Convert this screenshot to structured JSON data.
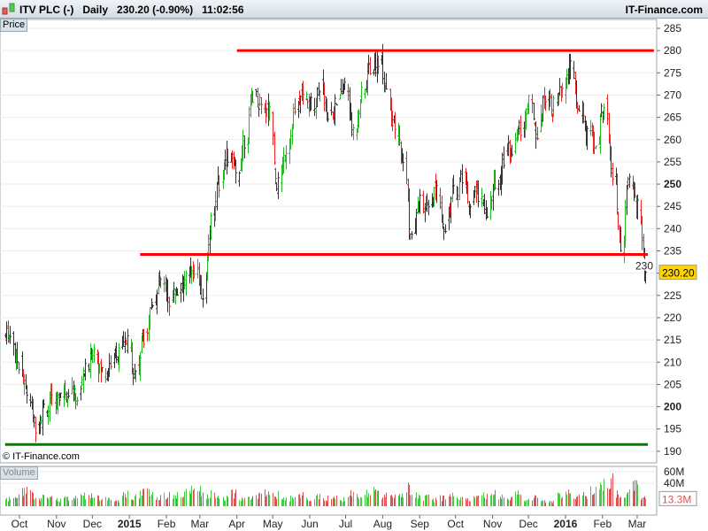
{
  "header": {
    "symbol": "ITV PLC (-)",
    "period": "Daily",
    "price": "230.20 (-0.90%)",
    "time": "11:02:56",
    "brand": "IT-Finance.com",
    "icon": "candlestick-icon"
  },
  "panels": {
    "price_label": "Price",
    "volume_label": "Volume",
    "copyright": "© IT-Finance.com"
  },
  "chart_data": {
    "type": "ohlc",
    "y_ticks": [
      190,
      195,
      200,
      205,
      210,
      215,
      220,
      225,
      230,
      235,
      240,
      245,
      250,
      255,
      260,
      265,
      270,
      275,
      280,
      285
    ],
    "ylim": [
      189,
      286
    ],
    "last_price": "230.20",
    "volume_ticks": [
      "60M",
      "40M"
    ],
    "last_volume": "13.3M",
    "x_ticks": [
      {
        "label": "Oct",
        "date": "2014-10-01"
      },
      {
        "label": "Nov",
        "date": "2014-11-01"
      },
      {
        "label": "Dec",
        "date": "2014-12-01"
      },
      {
        "label": "2015",
        "date": "2015-01-01",
        "bold": true
      },
      {
        "label": "Feb",
        "date": "2015-02-01"
      },
      {
        "label": "Mar",
        "date": "2015-03-01"
      },
      {
        "label": "Apr",
        "date": "2015-04-01"
      },
      {
        "label": "May",
        "date": "2015-05-01"
      },
      {
        "label": "Jun",
        "date": "2015-06-01"
      },
      {
        "label": "Jul",
        "date": "2015-07-01"
      },
      {
        "label": "Aug",
        "date": "2015-08-01"
      },
      {
        "label": "Sep",
        "date": "2015-09-01"
      },
      {
        "label": "Oct",
        "date": "2015-10-01"
      },
      {
        "label": "Nov",
        "date": "2015-11-01"
      },
      {
        "label": "Dec",
        "date": "2015-12-01"
      },
      {
        "label": "2016",
        "date": "2016-01-01",
        "bold": true
      },
      {
        "label": "Feb",
        "date": "2016-02-01"
      },
      {
        "label": "Mar",
        "date": "2016-03-01"
      }
    ],
    "start_date": "2014-09-19",
    "weekly_closes": [
      216,
      210,
      203,
      196,
      200,
      201,
      203,
      204,
      202,
      208,
      213,
      208,
      210,
      212,
      214,
      208,
      216,
      224,
      228,
      224,
      226,
      229,
      231,
      225,
      242,
      250,
      256,
      252,
      260,
      270,
      268,
      266,
      250,
      258,
      266,
      270,
      268,
      272,
      266,
      268,
      272,
      262,
      270,
      276,
      278,
      272,
      262,
      255,
      238,
      246,
      244,
      248,
      241,
      248,
      252,
      246,
      248,
      244,
      250,
      256,
      258,
      262,
      268,
      262,
      270,
      268,
      270,
      276,
      266,
      262,
      258,
      268,
      252,
      236,
      250,
      245,
      230.2
    ],
    "weekly_volume_m": [
      12,
      18,
      25,
      20,
      15,
      14,
      12,
      16,
      13,
      18,
      22,
      15,
      12,
      10,
      20,
      18,
      22,
      25,
      15,
      20,
      18,
      22,
      30,
      28,
      20,
      18,
      15,
      22,
      12,
      14,
      18,
      25,
      20,
      15,
      14,
      18,
      12,
      16,
      14,
      15,
      12,
      20,
      18,
      22,
      25,
      20,
      22,
      18,
      30,
      20,
      15,
      12,
      14,
      18,
      16,
      12,
      14,
      20,
      22,
      18,
      15,
      20,
      12,
      14,
      10,
      8,
      18,
      22,
      15,
      18,
      25,
      35,
      45,
      20,
      22,
      40,
      13.3
    ],
    "trendlines": [
      {
        "color": "#ff0000",
        "level": 280,
        "from": "2015-04-01",
        "to": "2016-03-15"
      },
      {
        "color": "#ff0000",
        "level": 234.2,
        "from": "2015-01-10",
        "to": "2016-03-10"
      },
      {
        "color": "#008000",
        "level": 191.5,
        "from": "2014-09-19",
        "to": "2016-03-10"
      }
    ]
  }
}
